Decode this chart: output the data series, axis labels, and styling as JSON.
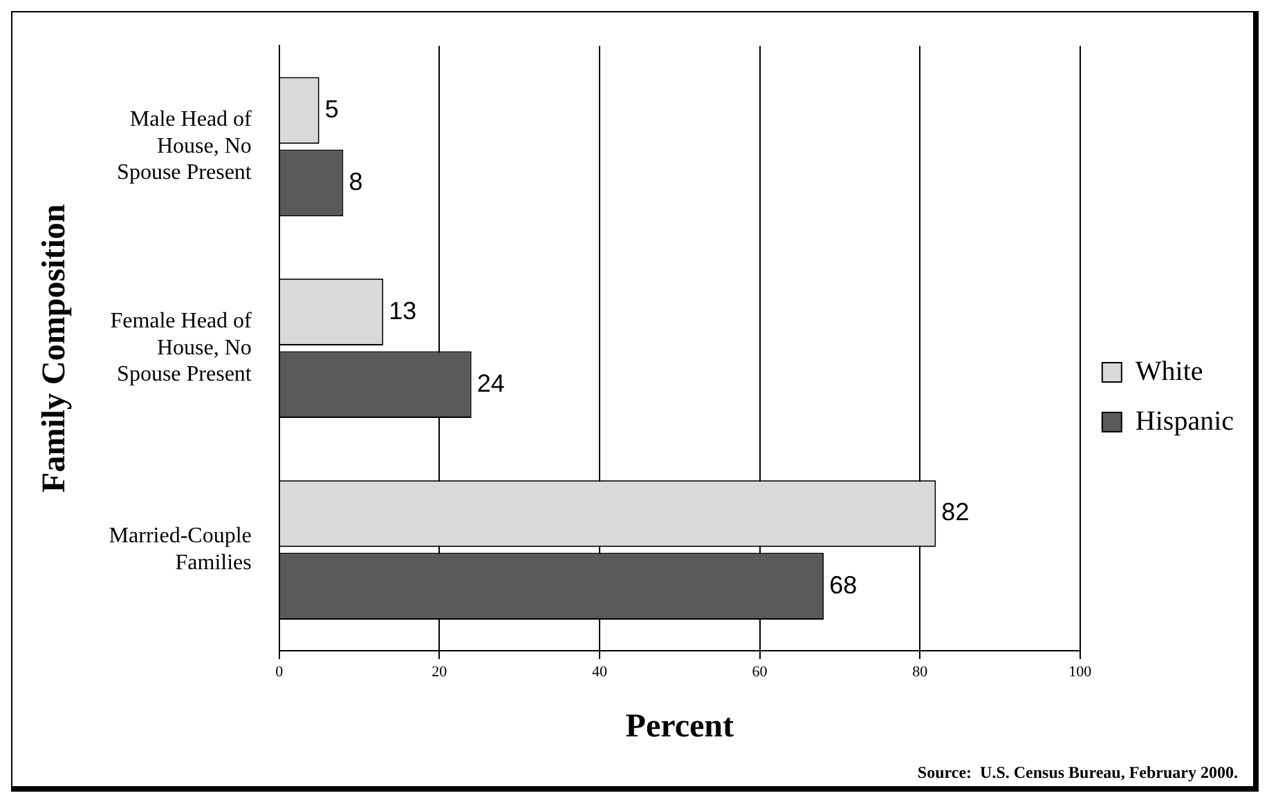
{
  "chart_data": {
    "type": "bar",
    "orientation": "horizontal",
    "categories": [
      "Male Head of House, No Spouse Present",
      "Female Head of House, No Spouse Present",
      "Married-Couple Families"
    ],
    "series": [
      {
        "name": "White",
        "color": "#d9d9d9",
        "values": [
          5,
          13,
          82
        ]
      },
      {
        "name": "Hispanic",
        "color": "#595959",
        "values": [
          8,
          24,
          68
        ]
      }
    ],
    "xlabel": "Percent",
    "ylabel": "Family Composition",
    "xlim": [
      0,
      100
    ],
    "xticks": [
      0,
      20,
      40,
      60,
      80,
      100
    ],
    "grid": "x",
    "legend": "right",
    "data_labels": true,
    "annotations": [
      "Source:  U.S. Census Bureau, February 2000."
    ]
  }
}
